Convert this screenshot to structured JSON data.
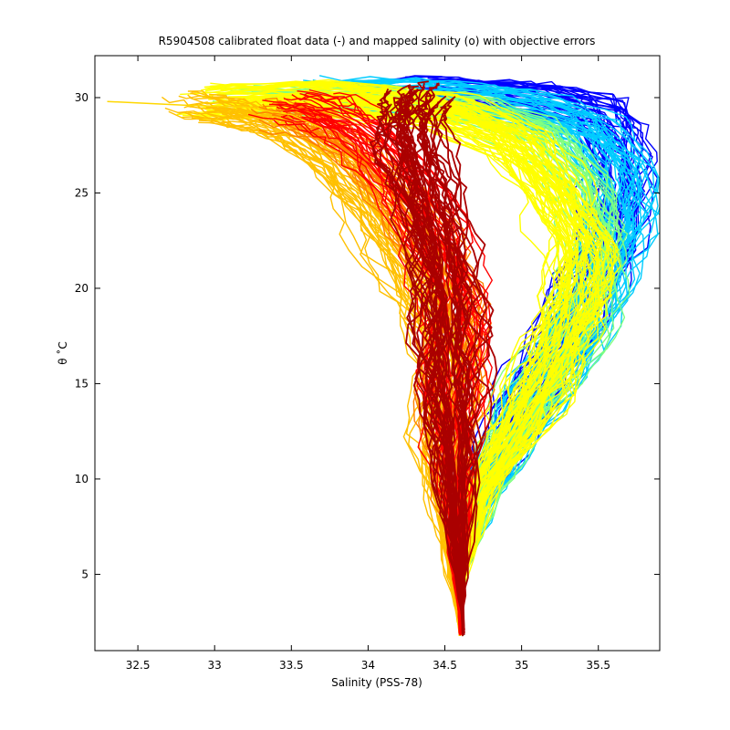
{
  "chart_data": {
    "type": "line",
    "title": "R5904508 calibrated float data (-) and mapped salinity (o) with objective errors",
    "xlabel": "Salinity (PSS-78)",
    "ylabel": "θ ˚C",
    "xlim": [
      32.22,
      35.9
    ],
    "ylim": [
      1.0,
      32.2
    ],
    "xticks": [
      32.5,
      33,
      33.5,
      34,
      34.5,
      35,
      35.5
    ],
    "xtick_labels": [
      "32.5",
      "33",
      "33.5",
      "34",
      "34.5",
      "35",
      "35.5"
    ],
    "yticks": [
      5,
      10,
      15,
      20,
      25,
      30
    ],
    "ytick_labels": [
      "5",
      "10",
      "15",
      "20",
      "25",
      "30"
    ],
    "grid": false,
    "legend": "none",
    "colormap": "jet",
    "colors": [
      "#00008f",
      "#0000ff",
      "#0080ff",
      "#00ffff",
      "#80ff80",
      "#ffff00",
      "#ff8000",
      "#ff0000",
      "#800000"
    ],
    "profile_groups": [
      {
        "color": "#0000ff",
        "count": 40,
        "points": [
          [
            34.62,
            2.0
          ],
          [
            34.59,
            5.0
          ],
          [
            34.63,
            8.0
          ],
          [
            34.82,
            11.0
          ],
          [
            35.05,
            14.5
          ],
          [
            35.32,
            18.5
          ],
          [
            35.55,
            22.0
          ],
          [
            35.62,
            25.5
          ],
          [
            35.6,
            28.0
          ],
          [
            35.5,
            29.6
          ],
          [
            35.0,
            30.3
          ],
          [
            34.3,
            30.5
          ]
        ]
      },
      {
        "color": "#00ccff",
        "count": 45,
        "points": [
          [
            34.62,
            2.0
          ],
          [
            34.6,
            5.0
          ],
          [
            34.7,
            9.0
          ],
          [
            34.95,
            12.5
          ],
          [
            35.25,
            16.5
          ],
          [
            35.5,
            20.5
          ],
          [
            35.65,
            23.5
          ],
          [
            35.6,
            26.5
          ],
          [
            35.4,
            28.8
          ],
          [
            35.0,
            29.9
          ],
          [
            34.4,
            30.4
          ],
          [
            33.8,
            30.5
          ]
        ]
      },
      {
        "color": "#80ff80",
        "count": 35,
        "points": [
          [
            34.62,
            2.0
          ],
          [
            34.6,
            5.0
          ],
          [
            34.72,
            9.5
          ],
          [
            34.98,
            13.0
          ],
          [
            35.22,
            16.5
          ],
          [
            35.45,
            20.0
          ],
          [
            35.5,
            23.0
          ],
          [
            35.35,
            26.0
          ],
          [
            35.1,
            28.5
          ],
          [
            34.6,
            29.8
          ],
          [
            33.9,
            30.3
          ],
          [
            33.2,
            30.2
          ]
        ]
      },
      {
        "color": "#ffff00",
        "count": 60,
        "points": [
          [
            34.6,
            2.0
          ],
          [
            34.59,
            5.0
          ],
          [
            34.72,
            9.5
          ],
          [
            34.98,
            13.0
          ],
          [
            35.2,
            16.5
          ],
          [
            35.35,
            19.5
          ],
          [
            35.38,
            22.5
          ],
          [
            35.2,
            25.5
          ],
          [
            34.95,
            28.0
          ],
          [
            34.5,
            29.6
          ],
          [
            33.8,
            30.3
          ],
          [
            33.0,
            30.1
          ]
        ]
      },
      {
        "color": "#ffc000",
        "count": 35,
        "points": [
          [
            34.6,
            2.0
          ],
          [
            34.55,
            5.0
          ],
          [
            34.5,
            9.0
          ],
          [
            34.45,
            12.0
          ],
          [
            34.52,
            15.0
          ],
          [
            34.48,
            18.0
          ],
          [
            34.28,
            21.0
          ],
          [
            34.05,
            24.0
          ],
          [
            33.8,
            26.8
          ],
          [
            33.5,
            28.6
          ],
          [
            33.2,
            29.4
          ],
          [
            32.9,
            29.8
          ]
        ]
      },
      {
        "color": "#ff8000",
        "count": 30,
        "points": [
          [
            34.6,
            2.0
          ],
          [
            34.58,
            6.0
          ],
          [
            34.55,
            10.0
          ],
          [
            34.52,
            14.0
          ],
          [
            34.55,
            17.0
          ],
          [
            34.6,
            19.5
          ],
          [
            34.45,
            22.0
          ],
          [
            34.2,
            24.8
          ],
          [
            33.95,
            27.2
          ],
          [
            33.7,
            28.8
          ],
          [
            33.45,
            29.4
          ]
        ]
      },
      {
        "color": "#ff0000",
        "count": 30,
        "points": [
          [
            34.6,
            2.0
          ],
          [
            34.58,
            6.0
          ],
          [
            34.56,
            10.0
          ],
          [
            34.55,
            14.0
          ],
          [
            34.54,
            17.0
          ],
          [
            34.55,
            20.0
          ],
          [
            34.42,
            23.0
          ],
          [
            34.2,
            25.8
          ],
          [
            33.98,
            28.2
          ],
          [
            33.75,
            29.5
          ],
          [
            33.5,
            29.8
          ]
        ]
      },
      {
        "color": "#aa0000",
        "count": 45,
        "points": [
          [
            34.62,
            2.0
          ],
          [
            34.6,
            6.0
          ],
          [
            34.58,
            10.0
          ],
          [
            34.56,
            14.0
          ],
          [
            34.54,
            17.0
          ],
          [
            34.52,
            20.0
          ],
          [
            34.47,
            23.0
          ],
          [
            34.38,
            25.8
          ],
          [
            34.3,
            28.0
          ],
          [
            34.28,
            29.5
          ],
          [
            34.35,
            30.2
          ]
        ]
      }
    ],
    "outliers": [
      {
        "color": "#ffd700",
        "points": [
          [
            32.3,
            29.8
          ],
          [
            32.8,
            29.6
          ],
          [
            33.2,
            29.5
          ],
          [
            33.5,
            29.1
          ],
          [
            33.7,
            28.4
          ]
        ]
      }
    ]
  }
}
